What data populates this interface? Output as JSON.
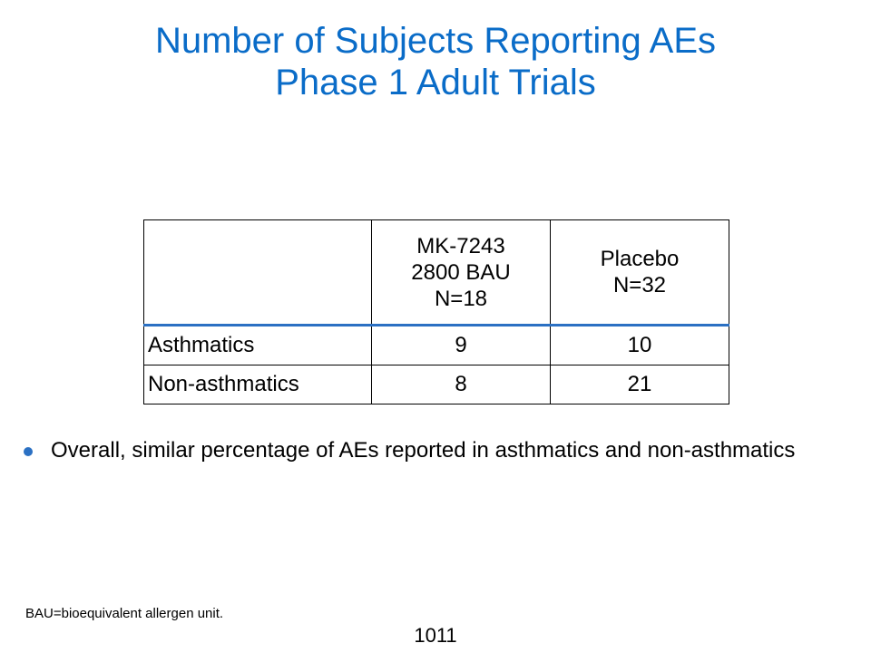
{
  "title": {
    "line1": "Number of Subjects Reporting AEs",
    "line2": "Phase 1 Adult Trials"
  },
  "table": {
    "header": {
      "col0": "",
      "col1": [
        "MK-7243",
        "2800 BAU",
        "N=18"
      ],
      "col2": [
        "Placebo",
        "N=32"
      ]
    },
    "rows": [
      {
        "label": "Asthmatics",
        "mk7243": "9",
        "placebo": "10"
      },
      {
        "label": "Non-asthmatics",
        "mk7243": "8",
        "placebo": "21"
      }
    ]
  },
  "bullet": {
    "text": "Overall, similar percentage of AEs reported in asthmatics and non-asthmatics"
  },
  "footnote": "BAU=bioequivalent allergen unit.",
  "page_number": "1011",
  "colors": {
    "title": "#0a6cc8",
    "accent": "#2b70c3"
  }
}
